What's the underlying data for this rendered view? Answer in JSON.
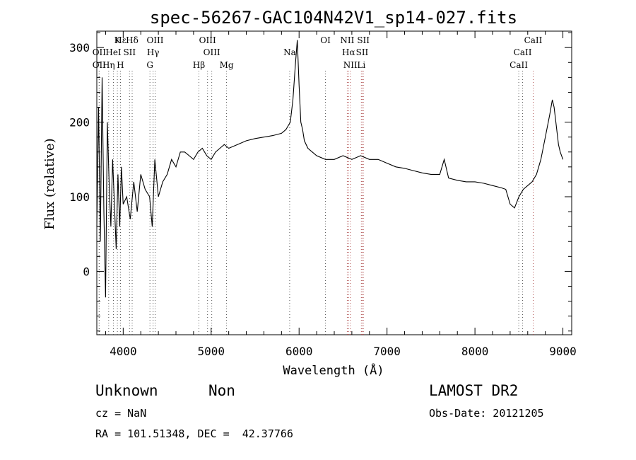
{
  "chart_data": {
    "type": "line",
    "title": "spec-56267-GAC104N42V1_sp14-027.fits",
    "xlabel": "Wavelength (Å)",
    "ylabel": "Flux (relative)",
    "xlim": [
      3700,
      9100
    ],
    "ylim": [
      -85,
      322
    ],
    "xticks": [
      4000,
      5000,
      6000,
      7000,
      8000,
      9000
    ],
    "yticks": [
      0,
      100,
      200,
      300
    ],
    "grid": false,
    "series": [
      {
        "x": [
          3700,
          3720,
          3740,
          3760,
          3780,
          3800,
          3820,
          3840,
          3860,
          3880,
          3900,
          3920,
          3940,
          3960,
          3980,
          4000,
          4040,
          4080,
          4120,
          4160,
          4200,
          4250,
          4300,
          4330,
          4360,
          4400,
          4450,
          4500,
          4550,
          4600,
          4650,
          4700,
          4750,
          4800,
          4850,
          4900,
          4950,
          5000,
          5050,
          5100,
          5150,
          5200,
          5300,
          5400,
          5500,
          5600,
          5700,
          5800,
          5850,
          5900,
          5930,
          5960,
          5980,
          6000,
          6020,
          6040,
          6060,
          6100,
          6150,
          6200,
          6300,
          6400,
          6500,
          6600,
          6700,
          6800,
          6900,
          7000,
          7100,
          7200,
          7300,
          7400,
          7500,
          7600,
          7650,
          7700,
          7800,
          7900,
          8000,
          8100,
          8200,
          8300,
          8350,
          8400,
          8450,
          8500,
          8550,
          8600,
          8650,
          8700,
          8750,
          8800,
          8850,
          8880,
          8900,
          8920,
          8950,
          8970,
          9000
        ],
        "y": [
          60,
          220,
          40,
          260,
          80,
          -35,
          200,
          120,
          60,
          150,
          90,
          30,
          130,
          60,
          140,
          90,
          100,
          70,
          120,
          80,
          130,
          110,
          100,
          60,
          150,
          100,
          120,
          130,
          150,
          140,
          160,
          160,
          155,
          150,
          160,
          165,
          155,
          150,
          160,
          165,
          170,
          165,
          170,
          175,
          178,
          180,
          182,
          185,
          190,
          200,
          230,
          280,
          310,
          250,
          200,
          190,
          175,
          165,
          160,
          155,
          150,
          150,
          155,
          150,
          155,
          150,
          150,
          145,
          140,
          138,
          135,
          132,
          130,
          130,
          150,
          125,
          122,
          120,
          120,
          118,
          115,
          112,
          110,
          90,
          85,
          100,
          110,
          115,
          120,
          130,
          150,
          180,
          210,
          230,
          220,
          200,
          170,
          160,
          150
        ]
      }
    ],
    "lines": [
      {
        "label": "Hε",
        "x": 3970,
        "row": 1
      },
      {
        "label": "K",
        "x": 3934,
        "row": 1
      },
      {
        "label": "Hδ",
        "x": 4102,
        "row": 1
      },
      {
        "label": "OIII",
        "x": 4363,
        "row": 1
      },
      {
        "label": "OIII",
        "x": 4959,
        "row": 1
      },
      {
        "label": "OI",
        "x": 6300,
        "row": 1
      },
      {
        "label": "NII",
        "x": 6548,
        "row": 1
      },
      {
        "label": "SII",
        "x": 6731,
        "row": 1
      },
      {
        "label": "CaII",
        "x": 8662,
        "row": 1
      },
      {
        "label": "OII",
        "x": 3727,
        "row": 2
      },
      {
        "label": "HeI",
        "x": 3889,
        "row": 2
      },
      {
        "label": "SII",
        "x": 4072,
        "row": 2
      },
      {
        "label": "Hγ",
        "x": 4340,
        "row": 2
      },
      {
        "label": "OIII",
        "x": 5007,
        "row": 2
      },
      {
        "label": "Na",
        "x": 5893,
        "row": 2
      },
      {
        "label": "Hα",
        "x": 6563,
        "row": 2
      },
      {
        "label": "SII",
        "x": 6717,
        "row": 2
      },
      {
        "label": "CaII",
        "x": 8542,
        "row": 2
      },
      {
        "label": "OII",
        "x": 3727,
        "row": 3
      },
      {
        "label": "Hη",
        "x": 3835,
        "row": 3
      },
      {
        "label": "H",
        "x": 3968,
        "row": 3
      },
      {
        "label": "G",
        "x": 4304,
        "row": 3
      },
      {
        "label": "Hβ",
        "x": 4861,
        "row": 3
      },
      {
        "label": "Mg",
        "x": 5175,
        "row": 3
      },
      {
        "label": "NII",
        "x": 6583,
        "row": 3
      },
      {
        "label": "Li",
        "x": 6708,
        "row": 3
      },
      {
        "label": "CaII",
        "x": 8498,
        "row": 3
      }
    ]
  },
  "info": {
    "class": "Unknown",
    "subclass": "Non",
    "survey": "LAMOST DR2",
    "redshift": "cz = NaN",
    "obsdate": "Obs-Date: 20121205",
    "coords": "RA = 101.51348, DEC =  42.37766"
  },
  "colors": {
    "spectrum": "#000000",
    "line_marker": "#555555",
    "line_marker_red": "#b05050"
  }
}
